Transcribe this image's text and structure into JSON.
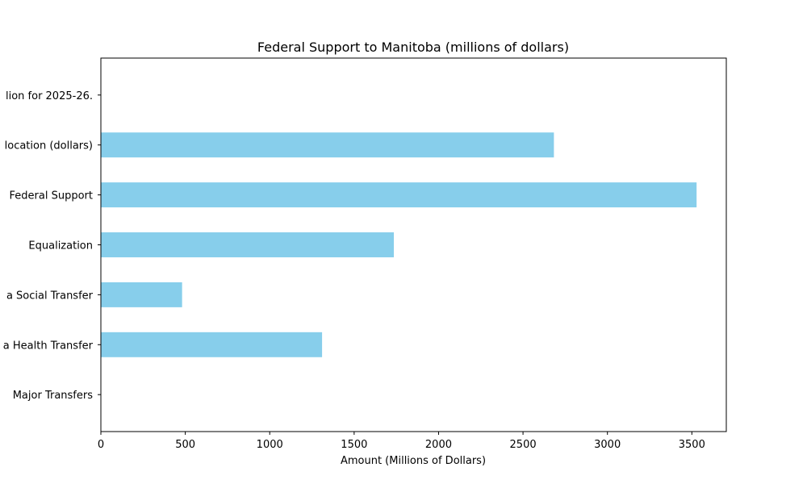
{
  "chart_data": {
    "type": "bar",
    "orientation": "horizontal",
    "title": "Federal Support to Manitoba (millions of dollars)",
    "xlabel": "Amount (Millions of Dollars)",
    "ylabel": "",
    "categories": [
      "Major Transfers",
      "a Health Transfer",
      "a Social Transfer",
      "Equalization",
      " Federal Support",
      "location (dollars)",
      "lion for 2025-26."
    ],
    "values": [
      0,
      1310,
      481,
      1735,
      3528,
      2683,
      0
    ],
    "xlim": [
      0,
      3704
    ],
    "xticks": [
      0,
      500,
      1000,
      1500,
      2000,
      2500,
      3000,
      3500
    ],
    "bar_color": "#87CEEB",
    "grid": false
  }
}
